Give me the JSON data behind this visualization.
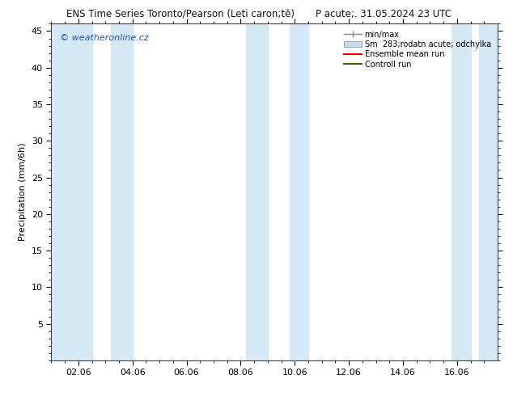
{
  "title_left": "ENS Time Series Toronto/Pearson (Leti caron;tě)",
  "title_right": "P acute;. 31.05.2024 23 UTC",
  "ylabel": "Precipitation (mm/6h)",
  "watermark": "© weatheronline.cz",
  "ylim": [
    0,
    46
  ],
  "yticks": [
    5,
    10,
    15,
    20,
    25,
    30,
    35,
    40,
    45
  ],
  "xlim": [
    0,
    16.5
  ],
  "xtick_labels": [
    "02.06",
    "04.06",
    "06.06",
    "08.06",
    "10.06",
    "12.06",
    "14.06",
    "16.06"
  ],
  "xtick_positions": [
    1,
    3,
    5,
    7,
    9,
    11,
    13,
    15
  ],
  "shaded_bands": [
    [
      0.0,
      1.5
    ],
    [
      2.2,
      3.0
    ],
    [
      7.2,
      8.0
    ],
    [
      8.8,
      9.5
    ],
    [
      14.8,
      15.5
    ],
    [
      15.8,
      16.5
    ]
  ],
  "shaded_color": "#d4e8f5",
  "background_color": "#ffffff",
  "plot_bg_color": "#ffffff",
  "legend_minmax_color": "#888888",
  "legend_spread_color": "#c8dcea",
  "legend_mean_color": "#dd0000",
  "legend_control_color": "#336600",
  "title_fontsize": 8.5,
  "axis_fontsize": 8,
  "tick_fontsize": 8,
  "watermark_color": "#2255aa"
}
